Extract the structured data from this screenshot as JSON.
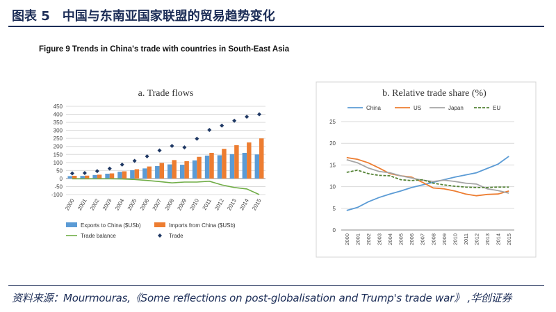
{
  "page_title": "图表 5　中国与东南亚国家联盟的贸易趋势变化",
  "figure_title": "Figure 9 Trends in China's trade with countries in South-East Asia",
  "source": "资料来源：Mourmouras,《Some reflections on post-globalisation and Trump's trade war》 ,华创证券",
  "colors": {
    "exports": "#5b9bd5",
    "imports": "#ed7d31",
    "balance": "#70ad47",
    "trade": "#1f3864",
    "china": "#5b9bd5",
    "us": "#ed7d31",
    "japan": "#a5a5a5",
    "eu": "#548235"
  },
  "chart_data": [
    {
      "type": "bar",
      "title": "a. Trade flows",
      "categories": [
        "2000",
        "2001",
        "2002",
        "2003",
        "2004",
        "2005",
        "2006",
        "2007",
        "2008",
        "2009",
        "2010",
        "2011",
        "2012",
        "2013",
        "2014",
        "2015"
      ],
      "ylim": [
        -100,
        450
      ],
      "yticks": [
        -100,
        -50,
        0,
        50,
        100,
        150,
        200,
        250,
        300,
        350,
        400,
        450
      ],
      "series": [
        {
          "name": "Exports to China ($USb)",
          "kind": "bar",
          "values": [
            15,
            16,
            22,
            30,
            42,
            52,
            63,
            78,
            88,
            86,
            113,
            143,
            145,
            152,
            160,
            150
          ]
        },
        {
          "name": "Imports from China ($USb)",
          "kind": "bar",
          "values": [
            17,
            18,
            24,
            32,
            45,
            58,
            75,
            97,
            115,
            108,
            135,
            160,
            185,
            208,
            225,
            250
          ]
        },
        {
          "name": "Trade balance",
          "kind": "line",
          "values": [
            -2,
            -2,
            -2,
            -2,
            -3,
            -6,
            -12,
            -19,
            -27,
            -22,
            -22,
            -17,
            -40,
            -56,
            -65,
            -100
          ]
        },
        {
          "name": "Trade",
          "kind": "marker",
          "values": [
            32,
            34,
            46,
            62,
            87,
            110,
            138,
            175,
            203,
            194,
            248,
            303,
            330,
            360,
            385,
            400
          ]
        }
      ]
    },
    {
      "type": "line",
      "title": "b. Relative trade share (%)",
      "categories": [
        "2000",
        "2001",
        "2002",
        "2003",
        "2004",
        "2005",
        "2006",
        "2007",
        "2008",
        "2009",
        "2010",
        "2011",
        "2012",
        "2013",
        "2014",
        "2015"
      ],
      "ylim": [
        0,
        25
      ],
      "yticks": [
        0,
        5,
        10,
        15,
        20,
        25
      ],
      "series": [
        {
          "name": "China",
          "values": [
            4.5,
            5.2,
            6.5,
            7.5,
            8.3,
            9.0,
            9.8,
            10.4,
            11.0,
            11.6,
            12.2,
            12.7,
            13.2,
            14.2,
            15.2,
            17.0
          ]
        },
        {
          "name": "US",
          "values": [
            16.7,
            16.3,
            15.5,
            14.3,
            13.0,
            12.5,
            12.2,
            11.0,
            9.7,
            9.5,
            9.0,
            8.3,
            7.9,
            8.2,
            8.3,
            9.0
          ]
        },
        {
          "name": "Japan",
          "values": [
            16.2,
            15.5,
            14.3,
            13.5,
            13.2,
            12.5,
            12.0,
            11.5,
            11.2,
            11.5,
            11.2,
            10.8,
            10.6,
            9.5,
            9.1,
            8.5
          ]
        },
        {
          "name": "EU",
          "values": [
            13.3,
            13.8,
            13.0,
            12.6,
            12.5,
            11.6,
            11.4,
            11.6,
            10.8,
            10.4,
            10.1,
            9.9,
            9.8,
            9.8,
            9.9,
            9.9
          ]
        }
      ]
    }
  ]
}
